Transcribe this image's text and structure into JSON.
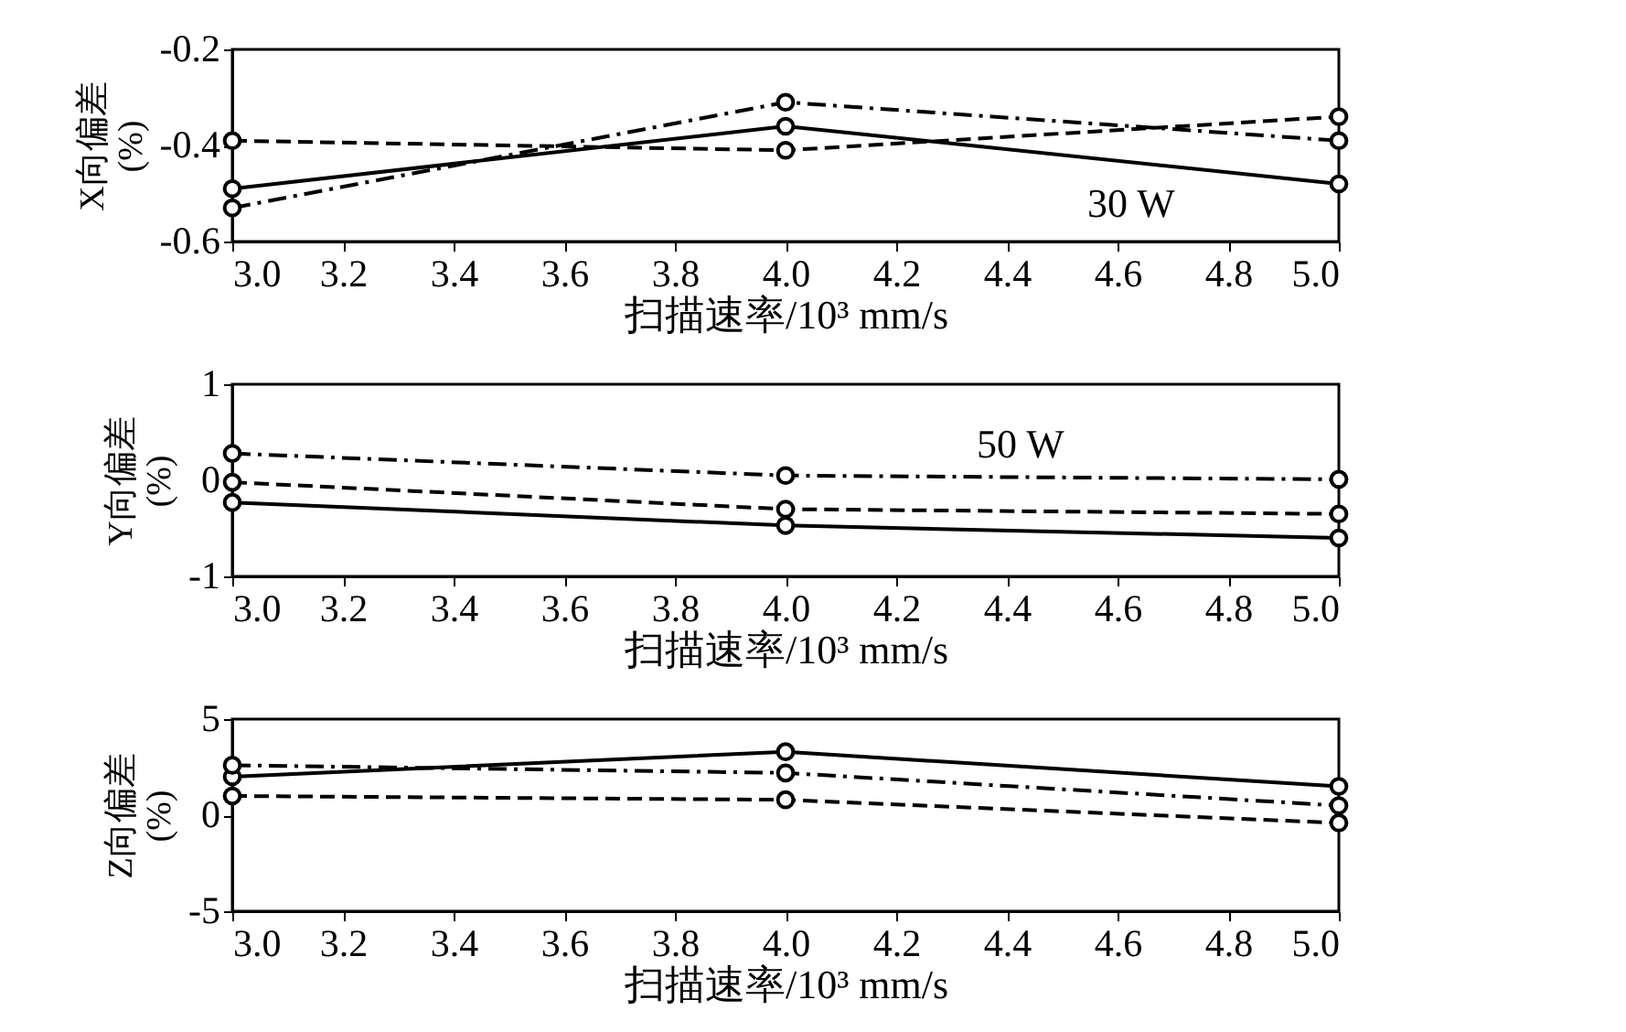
{
  "chart_data": [
    {
      "type": "line",
      "ylabel": "X向偏差\n(%)",
      "xlabel": "扫描速率/10³ mm/s",
      "x": [
        3.0,
        4.0,
        5.0
      ],
      "xlim": [
        3.0,
        5.0
      ],
      "xticks": [
        {
          "value": 3.0,
          "label": "3.0"
        },
        {
          "value": 3.2,
          "label": "3.2"
        },
        {
          "value": 3.4,
          "label": "3.4"
        },
        {
          "value": 3.6,
          "label": "3.6"
        },
        {
          "value": 3.8,
          "label": "3.8"
        },
        {
          "value": 4.0,
          "label": "4.0"
        },
        {
          "value": 4.2,
          "label": "4.2"
        },
        {
          "value": 4.4,
          "label": "4.4"
        },
        {
          "value": 4.6,
          "label": "4.6"
        },
        {
          "value": 4.8,
          "label": "4.8"
        },
        {
          "value": 5.0,
          "label": "5.0"
        }
      ],
      "ylim": [
        -0.6,
        -0.2
      ],
      "yticks": [
        -0.6,
        -0.4,
        -0.2
      ],
      "grid": false,
      "marker": "circle",
      "series": [
        {
          "color": "#000000",
          "line_style": "solid",
          "values": [
            -0.49,
            -0.36,
            -0.48
          ]
        },
        {
          "color": "#000000",
          "line_style": "dashed",
          "values": [
            -0.39,
            -0.41,
            -0.34
          ]
        },
        {
          "color": "#000000",
          "line_style": "dashdot",
          "values": [
            -0.53,
            -0.31,
            -0.39
          ]
        }
      ],
      "annotations": [
        {
          "text": "30 W",
          "x": 4.75,
          "y": -0.46
        }
      ]
    },
    {
      "type": "line",
      "ylabel": "Y向偏差\n(%)",
      "xlabel": "扫描速率/10³ mm/s",
      "x": [
        3.0,
        4.0,
        5.0
      ],
      "xlim": [
        3.0,
        5.0
      ],
      "xticks": [
        {
          "value": 3.0,
          "label": "3.0"
        },
        {
          "value": 3.2,
          "label": "3.2"
        },
        {
          "value": 3.4,
          "label": "3.4"
        },
        {
          "value": 3.6,
          "label": "3.6"
        },
        {
          "value": 3.8,
          "label": "3.8"
        },
        {
          "value": 4.0,
          "label": "4.0"
        },
        {
          "value": 4.2,
          "label": "4.2"
        },
        {
          "value": 4.4,
          "label": "4.4"
        },
        {
          "value": 4.6,
          "label": "4.6"
        },
        {
          "value": 4.8,
          "label": "4.8"
        },
        {
          "value": 5.0,
          "label": "5.0"
        }
      ],
      "ylim": [
        -1,
        1
      ],
      "yticks": [
        -1,
        0,
        1
      ],
      "grid": false,
      "marker": "circle",
      "series": [
        {
          "color": "#000000",
          "line_style": "solid",
          "values": [
            -0.23,
            -0.47,
            -0.6
          ]
        },
        {
          "color": "#000000",
          "line_style": "dashed",
          "values": [
            -0.02,
            -0.3,
            -0.35
          ]
        },
        {
          "color": "#000000",
          "line_style": "dashdot",
          "values": [
            0.28,
            0.05,
            0.01
          ]
        }
      ],
      "annotations": [
        {
          "text": "50 W",
          "x": 4.55,
          "y": 0.03
        }
      ]
    },
    {
      "type": "line",
      "ylabel": "Z向偏差\n(%)",
      "xlabel": "扫描速率/10³ mm/s",
      "x": [
        3.0,
        4.0,
        5.0
      ],
      "xlim": [
        3.0,
        5.0
      ],
      "xticks": [
        {
          "value": 3.0,
          "label": "3.0"
        },
        {
          "value": 3.2,
          "label": "3.2"
        },
        {
          "value": 3.4,
          "label": "3.4"
        },
        {
          "value": 3.6,
          "label": "3.6"
        },
        {
          "value": 3.8,
          "label": "3.8"
        },
        {
          "value": 4.0,
          "label": "4.0"
        },
        {
          "value": 4.2,
          "label": "4.2"
        },
        {
          "value": 4.4,
          "label": "4.4"
        },
        {
          "value": 4.6,
          "label": "4.6"
        },
        {
          "value": 4.8,
          "label": "4.8"
        },
        {
          "value": 5.0,
          "label": "5.0"
        }
      ],
      "ylim": [
        -5,
        5
      ],
      "yticks": [
        -5,
        0,
        5
      ],
      "grid": false,
      "marker": "circle",
      "series": [
        {
          "color": "#000000",
          "line_style": "solid",
          "values": [
            2.0,
            3.3,
            1.5
          ]
        },
        {
          "color": "#000000",
          "line_style": "dashed",
          "values": [
            1.0,
            0.8,
            -0.4
          ]
        },
        {
          "color": "#000000",
          "line_style": "dashdot",
          "values": [
            2.6,
            2.2,
            0.5
          ]
        }
      ]
    }
  ]
}
